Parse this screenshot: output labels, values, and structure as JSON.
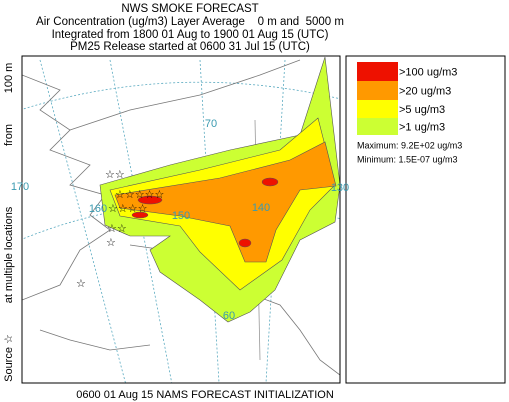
{
  "header": {
    "title": "NWS SMOKE FORECAST",
    "line1": "Air Concentration (ug/m3) Layer Average    0 m and  5000 m",
    "line2": "Integrated from 1800 01 Aug to 1900 01 Aug 15 (UTC)",
    "line3": "PM25 Release started at 0600 31 Jul 15 (UTC)"
  },
  "legend": {
    "entries": [
      {
        "label": ">100 ug/m3",
        "color": "#ee1100"
      },
      {
        "label": ">20 ug/m3",
        "color": "#ff9900"
      },
      {
        "label": ">5 ug/m3",
        "color": "#ffff00"
      },
      {
        "label": ">1 ug/m3",
        "color": "#ccff33"
      }
    ],
    "maximum": "Maximum: 9.2E+02 ug/m3",
    "minimum": "Minimum: 1.5E-07 ug/m3"
  },
  "side_label": [
    "Source ☆",
    "at multiple locations",
    "from",
    "100 m"
  ],
  "footer": "0600 01 Aug 15 NAMS FORECAST INITIALIZATION",
  "map": {
    "grid_labels": [
      "70",
      "170",
      "160",
      "150",
      "140",
      "130",
      "60"
    ]
  }
}
